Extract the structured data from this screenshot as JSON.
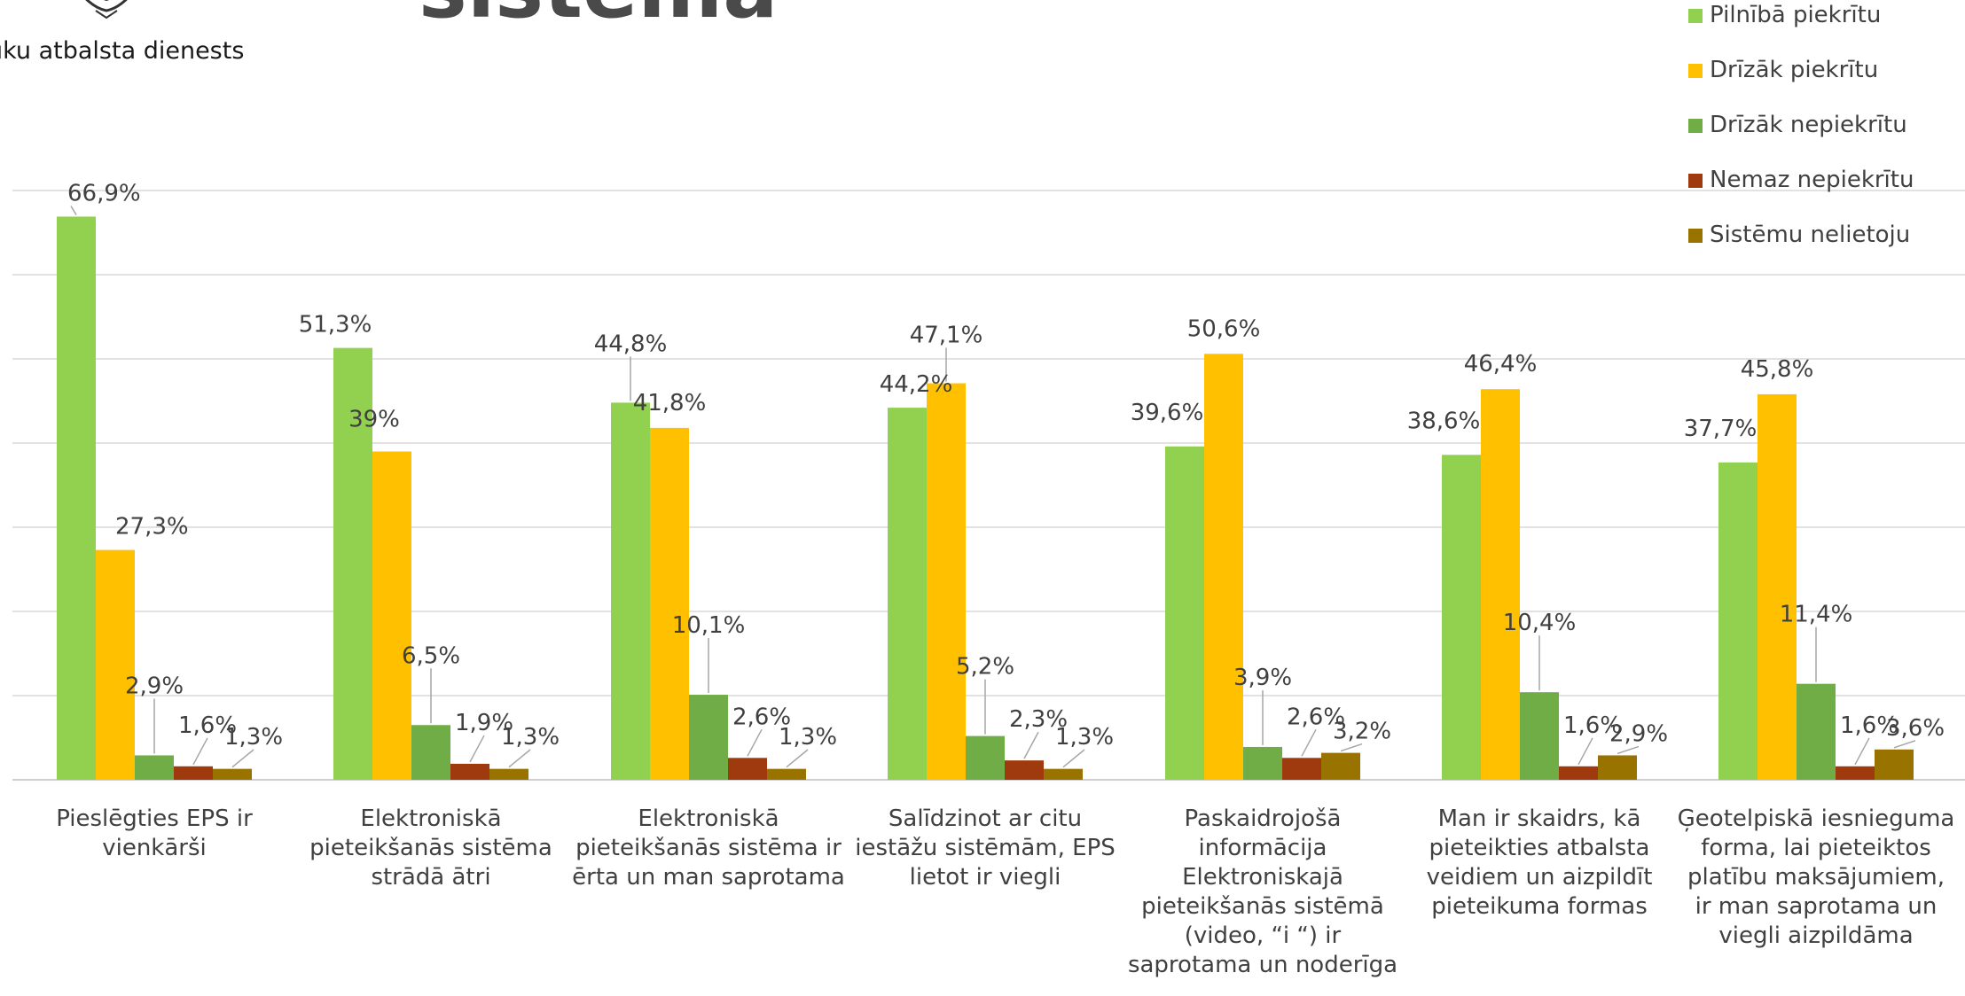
{
  "header": {
    "org_text": "uku atbalsta dienests",
    "title_fragment": "sistēma"
  },
  "colors": {
    "background": "#ffffff",
    "gridline": "#d9d9d9",
    "text": "#404040"
  },
  "chart_data": {
    "type": "bar",
    "title": "",
    "xlabel": "",
    "ylabel": "",
    "ylim": [
      0,
      70
    ],
    "grid": true,
    "legend_position": "top-right",
    "categories": [
      [
        "Pieslēgties EPS ir",
        "vienkārši"
      ],
      [
        "Elektroniskā",
        "pieteikšanās sistēma",
        "strādā ātri"
      ],
      [
        "Elektroniskā",
        "pieteikšanās sistēma ir",
        "ērta un man saprotama"
      ],
      [
        "Salīdzinot ar citu",
        "iestāžu sistēmām, EPS",
        "lietot ir viegli"
      ],
      [
        "Paskaidrojošā",
        "informācija",
        "Elektroniskajā",
        "pieteikšanās sistēmā",
        "(video, “i “) ir",
        "saprotama un noderīga"
      ],
      [
        "Man ir skaidrs, kā",
        "pieteikties atbalsta",
        "veidiem un aizpildīt",
        "pieteikuma formas"
      ],
      [
        "Ģeotelpiskā iesnieguma",
        "forma, lai pieteiktos",
        "platību maksājumiem,",
        "ir man saprotama un",
        "viegli aizpildāma"
      ]
    ],
    "series": [
      {
        "name": "Pilnībā piekrītu",
        "color": "#92d050",
        "values": [
          66.9,
          51.3,
          44.8,
          44.2,
          39.6,
          38.6,
          37.7
        ],
        "labels": [
          "66,9%",
          "51,3%",
          "44,8%",
          "44,2%",
          "39,6%",
          "38,6%",
          "37,7%"
        ]
      },
      {
        "name": "Drīzāk piekrītu",
        "color": "#ffc000",
        "values": [
          27.3,
          39,
          41.8,
          47.1,
          50.6,
          46.4,
          45.8
        ],
        "labels": [
          "27,3%",
          "39%",
          "41,8%",
          "47,1%",
          "50,6%",
          "46,4%",
          "45,8%"
        ]
      },
      {
        "name": "Drīzāk nepiekrītu",
        "color": "#70ad47",
        "values": [
          2.9,
          6.5,
          10.1,
          5.2,
          3.9,
          10.4,
          11.4
        ],
        "labels": [
          "2,9%",
          "6,5%",
          "10,1%",
          "5,2%",
          "3,9%",
          "10,4%",
          "11,4%"
        ]
      },
      {
        "name": "Nemaz nepiekrītu",
        "color": "#9e3a0e",
        "values": [
          1.6,
          1.9,
          2.6,
          2.3,
          2.6,
          1.6,
          1.6
        ],
        "labels": [
          "1,6%",
          "1,9%",
          "2,6%",
          "2,3%",
          "2,6%",
          "1,6%",
          "1,6%"
        ]
      },
      {
        "name": "Sistēmu nelietoju",
        "color": "#997300",
        "values": [
          1.3,
          1.3,
          1.3,
          1.3,
          3.2,
          2.9,
          3.6
        ],
        "labels": [
          "1,3%",
          "1,3%",
          "1,3%",
          "1,3%",
          "3,2%",
          "2,9%",
          "3,6%"
        ]
      }
    ]
  }
}
